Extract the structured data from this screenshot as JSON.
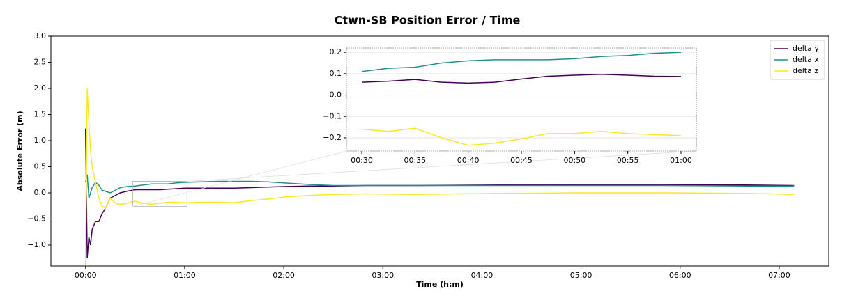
{
  "chart_data": [
    {
      "type": "line",
      "title": "Ctwn-SB Position Error / Time",
      "x_label": "Time (h:m)",
      "y_label": "Absolute Error (m)",
      "x": [
        0,
        1,
        2,
        3,
        4,
        6,
        8,
        10,
        12,
        15,
        18,
        21,
        25,
        30,
        35,
        40,
        45,
        50,
        55,
        60,
        70,
        80,
        90,
        100,
        110,
        120,
        135,
        150,
        170,
        200,
        250,
        300,
        350,
        400,
        429
      ],
      "series": [
        {
          "name": "delta y",
          "color": "#440154",
          "values": [
            1.23,
            -1.25,
            -0.85,
            -1.0,
            -0.7,
            -0.55,
            -0.55,
            -0.4,
            -0.3,
            -0.1,
            -0.05,
            0.0,
            0.03,
            0.06,
            0.06,
            0.06,
            0.06,
            0.07,
            0.08,
            0.09,
            0.09,
            0.09,
            0.09,
            0.1,
            0.11,
            0.12,
            0.13,
            0.13,
            0.14,
            0.14,
            0.15,
            0.15,
            0.15,
            0.15,
            0.14
          ]
        },
        {
          "name": "delta x",
          "color": "#21908d",
          "values": [
            0.2,
            0.35,
            -0.1,
            0.0,
            0.1,
            0.2,
            0.15,
            0.05,
            0.03,
            0.0,
            0.05,
            0.1,
            0.12,
            0.13,
            0.15,
            0.17,
            0.17,
            0.17,
            0.19,
            0.2,
            0.21,
            0.22,
            0.22,
            0.22,
            0.21,
            0.19,
            0.16,
            0.14,
            0.14,
            0.14,
            0.14,
            0.14,
            0.14,
            0.13,
            0.13
          ]
        },
        {
          "name": "delta z",
          "color": "#fde725",
          "values": [
            -1.4,
            2.0,
            1.35,
            0.8,
            0.5,
            0.2,
            -0.1,
            -0.25,
            -0.3,
            -0.1,
            -0.2,
            -0.22,
            -0.2,
            -0.16,
            -0.2,
            -0.22,
            -0.2,
            -0.18,
            -0.18,
            -0.19,
            -0.18,
            -0.18,
            -0.19,
            -0.15,
            -0.12,
            -0.08,
            -0.05,
            -0.03,
            -0.02,
            -0.03,
            -0.01,
            0.0,
            0.0,
            -0.01,
            -0.03
          ]
        }
      ],
      "xlim": [
        -21,
        450
      ],
      "xticks": [
        {
          "value": 0,
          "label": "00:00"
        },
        {
          "value": 60,
          "label": "01:00"
        },
        {
          "value": 120,
          "label": "02:00"
        },
        {
          "value": 180,
          "label": "03:00"
        },
        {
          "value": 240,
          "label": "04:00"
        },
        {
          "value": 300,
          "label": "05:00"
        },
        {
          "value": 360,
          "label": "06:00"
        },
        {
          "value": 420,
          "label": "07:00"
        }
      ],
      "ylim": [
        -1.4,
        3.0
      ],
      "yticks": [
        {
          "value": -1.0,
          "label": "−1.0"
        },
        {
          "value": -0.5,
          "label": "−0.5"
        },
        {
          "value": 0,
          "label": "0.0"
        },
        {
          "value": 0.5,
          "label": "0.5"
        },
        {
          "value": 1.0,
          "label": "1.0"
        },
        {
          "value": 1.5,
          "label": "1.5"
        },
        {
          "value": 2.0,
          "label": "2.0"
        },
        {
          "value": 2.5,
          "label": "2.5"
        },
        {
          "value": 3.0,
          "label": "3.0"
        }
      ],
      "grid": false,
      "legend": "upper right"
    },
    {
      "type": "line",
      "x": [
        30,
        32.5,
        35,
        37.5,
        40,
        42.5,
        45,
        47.5,
        50,
        52.5,
        55,
        57.5,
        60
      ],
      "series": [
        {
          "color": "#440154",
          "values": [
            0.06,
            0.065,
            0.073,
            0.06,
            0.056,
            0.06,
            0.075,
            0.088,
            0.093,
            0.097,
            0.093,
            0.088,
            0.087
          ]
        },
        {
          "color": "#21908d",
          "values": [
            0.11,
            0.125,
            0.13,
            0.15,
            0.16,
            0.165,
            0.165,
            0.165,
            0.17,
            0.18,
            0.185,
            0.195,
            0.2
          ]
        },
        {
          "color": "#fde725",
          "values": [
            -0.16,
            -0.17,
            -0.155,
            -0.2,
            -0.235,
            -0.225,
            -0.205,
            -0.18,
            -0.18,
            -0.17,
            -0.18,
            -0.185,
            -0.19
          ]
        }
      ],
      "xlim": [
        28.56,
        61.44
      ],
      "xticks": [
        {
          "value": 30,
          "label": "00:30"
        },
        {
          "value": 35,
          "label": "00:35"
        },
        {
          "value": 40,
          "label": "00:40"
        },
        {
          "value": 45,
          "label": "00:45"
        },
        {
          "value": 50,
          "label": "00:50"
        },
        {
          "value": 55,
          "label": "00:55"
        },
        {
          "value": 60,
          "label": "01:00"
        }
      ],
      "ylim": [
        -0.262,
        0.22
      ],
      "yticks": [
        {
          "value": -0.2,
          "label": "−0.2"
        },
        {
          "value": -0.1,
          "label": "−0.1"
        },
        {
          "value": 0,
          "label": "0.0"
        },
        {
          "value": 0.1,
          "label": "0.1"
        },
        {
          "value": 0.2,
          "label": "0.2"
        }
      ],
      "grid": true
    }
  ]
}
